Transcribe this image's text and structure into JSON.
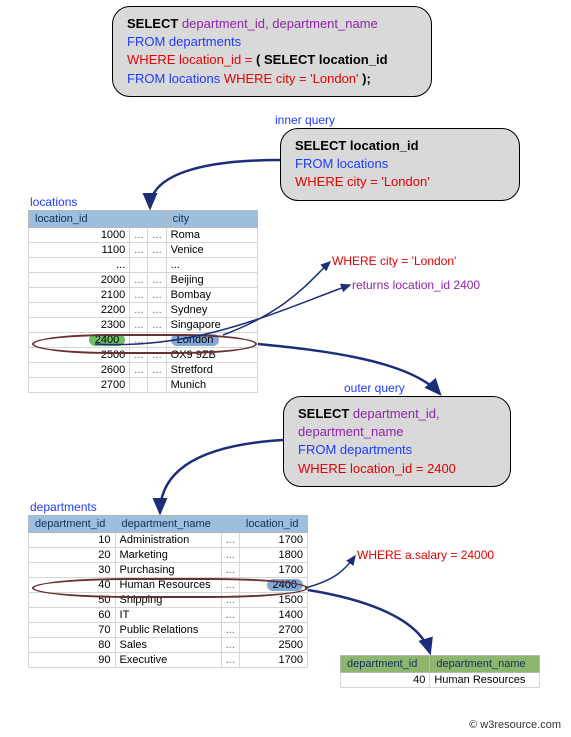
{
  "main_query": {
    "select_kw": "SELECT",
    "select_cols": "department_id, department_name",
    "from_kw": "FROM",
    "from_tbl": "departments",
    "where_kw": "WHERE",
    "where_cond": "location_id =",
    "sub_open": "(",
    "sub_select_kw": "SELECT",
    "sub_select_col": "location_id",
    "sub_from_kw": "FROM",
    "sub_from_tbl": "locations",
    "sub_where_kw": "WHERE",
    "sub_where_cond": "city = 'London'",
    "close": ");"
  },
  "inner_query_label": "inner query",
  "inner_query": {
    "select_kw": "SELECT",
    "select_col": "location_id",
    "from_kw": "FROM",
    "from_tbl": "locations",
    "where_kw": "WHERE",
    "where_cond": "city = 'London'"
  },
  "locations_label": "locations",
  "locations_table": {
    "headers": [
      "location_id",
      "",
      "",
      "city"
    ],
    "rows": [
      [
        "1000",
        "...",
        "...",
        "Roma"
      ],
      [
        "1100",
        "...",
        "...",
        "Venice"
      ],
      [
        "...",
        "",
        "",
        "..."
      ],
      [
        "2000",
        "...",
        "...",
        "Beijing"
      ],
      [
        "2100",
        "...",
        "...",
        "Bombay"
      ],
      [
        "2200",
        "...",
        "...",
        "Sydney"
      ],
      [
        "2300",
        "...",
        "...",
        "Singapore"
      ],
      [
        "2400",
        "...",
        "...",
        "London"
      ],
      [
        "2500",
        "...",
        "...",
        "OX9 9ZB"
      ],
      [
        "2600",
        "...",
        "...",
        "Stretford"
      ],
      [
        "2700",
        "",
        "",
        "Munich"
      ]
    ],
    "highlight_row_index": 7
  },
  "annot_where_city": "WHERE city = 'London'",
  "annot_returns": "returns location_id 2400",
  "outer_query_label": "outer query",
  "outer_query": {
    "select_kw": "SELECT",
    "select_col1": "department_id,",
    "select_col2": "department_name",
    "from_kw": "FROM",
    "from_tbl": "departments",
    "where_kw": "WHERE",
    "where_cond": "location_id = 2400"
  },
  "departments_label": "departments",
  "departments_table": {
    "headers": [
      "department_id",
      "department_name",
      "",
      "location_id"
    ],
    "rows": [
      [
        "10",
        "Administration",
        "...",
        "1700"
      ],
      [
        "20",
        "Marketing",
        "...",
        "1800"
      ],
      [
        "30",
        "Purchasing",
        "...",
        "1700"
      ],
      [
        "40",
        "Human Resources",
        "...",
        "2400"
      ],
      [
        "50",
        "Shipping",
        "...",
        "1500"
      ],
      [
        "60",
        "IT",
        "...",
        "1400"
      ],
      [
        "70",
        "Public Relations",
        "...",
        "2700"
      ],
      [
        "80",
        "Sales",
        "...",
        "2500"
      ],
      [
        "90",
        "Executive",
        "...",
        "1700"
      ]
    ],
    "highlight_row_index": 3
  },
  "annot_where_salary": "WHERE a.salary = 24000",
  "result_table": {
    "headers": [
      "department_id",
      "department_name"
    ],
    "row": [
      "40",
      "Human Resources"
    ]
  },
  "copyright": "© w3resource.com",
  "colors": {
    "box_bg": "#d9d9d9",
    "header_bg": "#9bbfdc",
    "result_header_bg": "#8eb66e",
    "arrow": "#1c2e7a",
    "highlight_green": "#6fc06a",
    "highlight_blue": "#7fa9d9"
  }
}
